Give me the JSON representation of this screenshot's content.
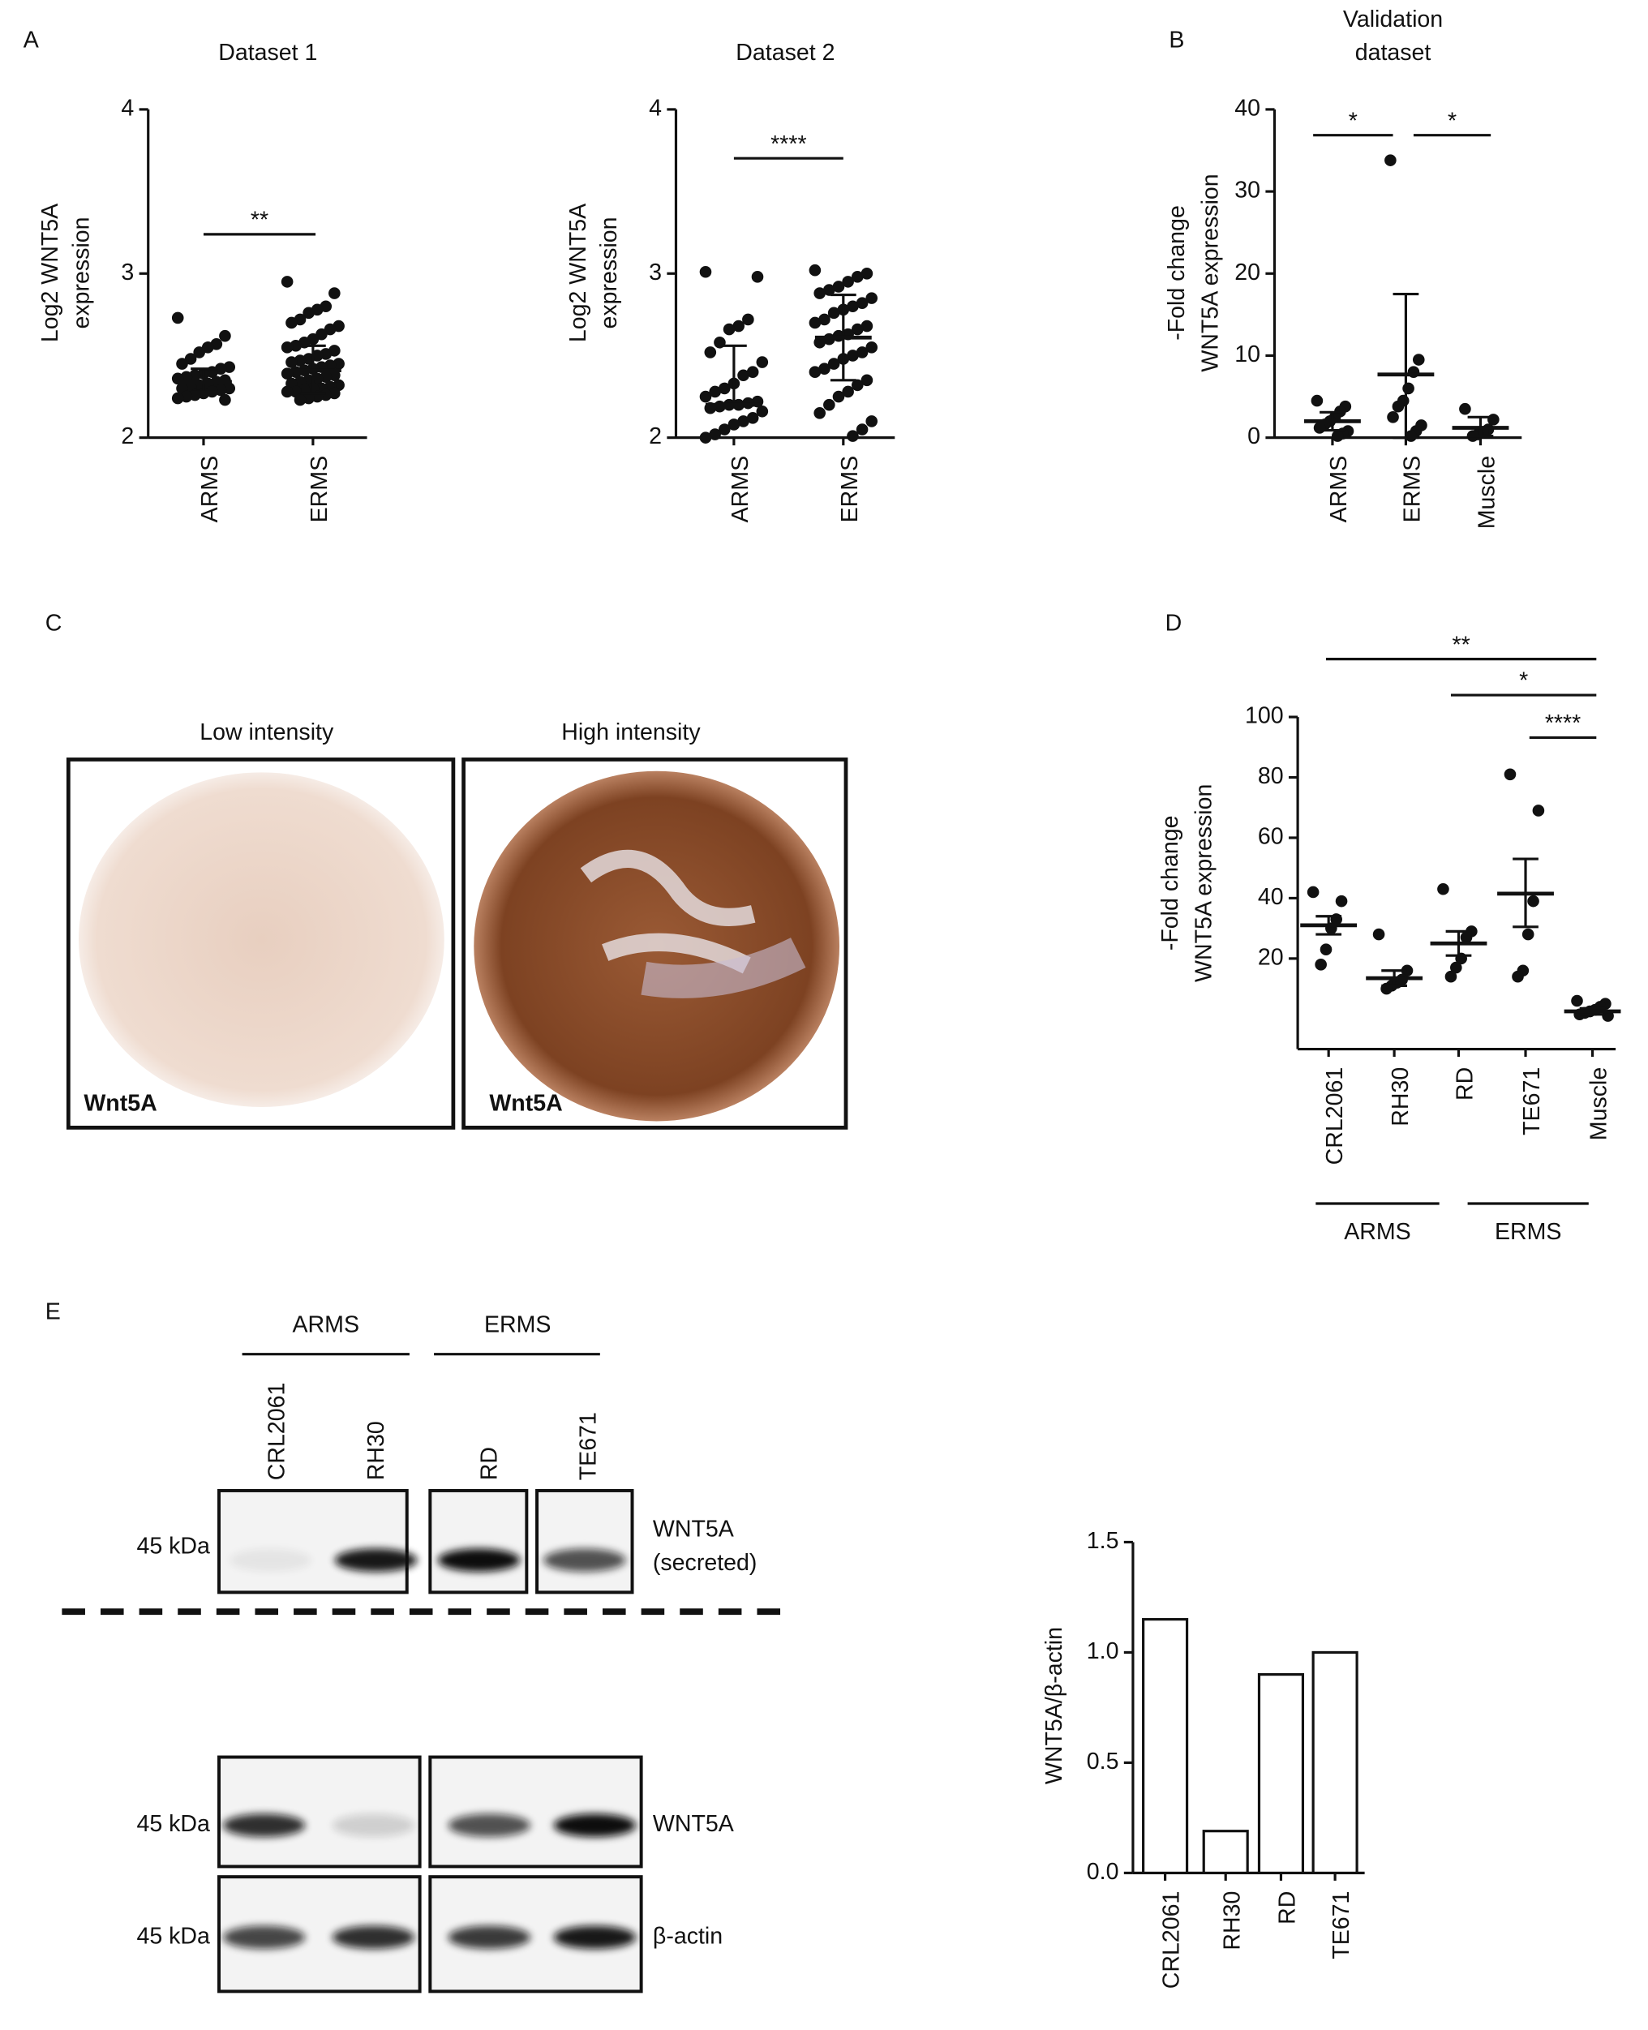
{
  "panel_labels": [
    "A",
    "B",
    "C",
    "D",
    "E"
  ],
  "chart_data": [
    {
      "type": "strip",
      "title": [
        "Dataset 1"
      ],
      "ylabel": [
        "Log2 WNT5A",
        "expression"
      ],
      "categories": [
        "ARMS",
        "ERMS"
      ],
      "ylim": [
        2,
        4
      ],
      "yticks": [
        2,
        3,
        4
      ],
      "values": [
        [
          2.73,
          2.62,
          2.57,
          2.55,
          2.52,
          2.48,
          2.45,
          2.43,
          2.42,
          2.4,
          2.39,
          2.38,
          2.37,
          2.36,
          2.35,
          2.34,
          2.33,
          2.32,
          2.31,
          2.3,
          2.3,
          2.29,
          2.28,
          2.27,
          2.26,
          2.25,
          2.24,
          2.23
        ],
        [
          2.95,
          2.88,
          2.8,
          2.78,
          2.76,
          2.72,
          2.7,
          2.68,
          2.66,
          2.63,
          2.6,
          2.58,
          2.56,
          2.55,
          2.53,
          2.51,
          2.5,
          2.48,
          2.47,
          2.46,
          2.45,
          2.44,
          2.43,
          2.42,
          2.41,
          2.4,
          2.39,
          2.38,
          2.37,
          2.36,
          2.35,
          2.34,
          2.33,
          2.32,
          2.31,
          2.3,
          2.3,
          2.29,
          2.28,
          2.28,
          2.27,
          2.26,
          2.25,
          2.24,
          2.23
        ]
      ],
      "center": [
        2.34,
        2.41
      ],
      "lower": [
        2.28,
        2.27
      ],
      "upper": [
        2.42,
        2.56
      ],
      "annotations": [
        "**"
      ]
    },
    {
      "type": "strip",
      "title": [
        "Dataset 2"
      ],
      "ylabel": [
        "Log2 WNT5A",
        "expression"
      ],
      "categories": [
        "ARMS",
        "ERMS"
      ],
      "ylim": [
        2,
        4
      ],
      "yticks": [
        2,
        3,
        4
      ],
      "values": [
        [
          3.01,
          2.98,
          2.72,
          2.68,
          2.66,
          2.58,
          2.52,
          2.46,
          2.4,
          2.38,
          2.33,
          2.3,
          2.28,
          2.25,
          2.22,
          2.21,
          2.2,
          2.2,
          2.19,
          2.18,
          2.16,
          2.12,
          2.1,
          2.08,
          2.05,
          2.02,
          2.0
        ],
        [
          3.02,
          3.0,
          2.98,
          2.95,
          2.92,
          2.9,
          2.88,
          2.85,
          2.82,
          2.8,
          2.78,
          2.76,
          2.72,
          2.7,
          2.68,
          2.66,
          2.63,
          2.62,
          2.6,
          2.58,
          2.55,
          2.52,
          2.5,
          2.48,
          2.45,
          2.42,
          2.4,
          2.35,
          2.32,
          2.28,
          2.25,
          2.2,
          2.15,
          2.1,
          2.05,
          2.01
        ]
      ],
      "center": [
        2.2,
        2.61
      ],
      "lower": [
        2.2,
        2.35
      ],
      "upper": [
        2.56,
        2.87
      ],
      "annotations": [
        "****"
      ]
    },
    {
      "type": "strip",
      "title": [
        "Validation",
        "dataset"
      ],
      "ylabel": [
        "-Fold change",
        "WNT5A expression"
      ],
      "categories": [
        "ARMS",
        "ERMS",
        "Muscle"
      ],
      "ylim": [
        0,
        40
      ],
      "yticks": [
        0,
        10,
        20,
        30,
        40
      ],
      "values": [
        [
          4.5,
          3.8,
          3.2,
          2.5,
          2.0,
          1.6,
          1.2,
          0.8,
          0.5,
          0.2
        ],
        [
          33.8,
          9.5,
          8.0,
          6.0,
          4.5,
          3.8,
          2.5,
          1.5,
          0.8,
          0.2
        ],
        [
          3.5,
          2.2,
          1.0,
          0.6,
          0.4,
          0.2
        ]
      ],
      "center": [
        2,
        7.7,
        1.2
      ],
      "lower": [
        0.9,
        0,
        0.2
      ],
      "upper": [
        3.1,
        17.5,
        2.5
      ],
      "annotations": [
        "*",
        "*"
      ]
    },
    {
      "type": "strip",
      "ylabel": [
        "-Fold change",
        "WNT5A expression"
      ],
      "categories": [
        "CRL2061",
        "RH30",
        "RD",
        "TE671",
        "Muscle"
      ],
      "groups": [
        "ARMS",
        "ERMS"
      ],
      "ylim": [
        -10,
        100
      ],
      "yticks": [
        20,
        40,
        60,
        80,
        100
      ],
      "values": [
        [
          42,
          39,
          33,
          30,
          23,
          18
        ],
        [
          28,
          16,
          13,
          12,
          11,
          10
        ],
        [
          43,
          29,
          27,
          20,
          17,
          14
        ],
        [
          81,
          69,
          39,
          28,
          16,
          14
        ],
        [
          6,
          5,
          4,
          3,
          2.5,
          2,
          1.5,
          1
        ]
      ],
      "center": [
        31,
        13.5,
        25,
        41.5,
        2.5
      ],
      "lower": [
        28,
        11,
        21,
        30.5,
        1.5
      ],
      "upper": [
        34,
        16,
        29,
        53,
        3.5
      ],
      "annotations": [
        "**",
        "*",
        "****"
      ]
    },
    {
      "type": "bar",
      "ylabel": [
        "WNT5A/β-actin"
      ],
      "categories": [
        "CRL2061",
        "RH30",
        "RD",
        "TE671"
      ],
      "values": [
        1.15,
        0.19,
        0.9,
        1.0
      ],
      "color": "#ffffff",
      "ylim": [
        0,
        1.5
      ],
      "yticks": [
        {
          "value": 0,
          "label": "0.0"
        },
        {
          "value": 0.5,
          "label": "0.5"
        },
        {
          "value": 1,
          "label": "1.0"
        },
        {
          "value": 1.5,
          "label": "1.5"
        }
      ]
    }
  ],
  "ihc": {
    "panels": [
      {
        "title": "Low intensity",
        "stain": "Wnt5A"
      },
      {
        "title": "High intensity",
        "stain": "Wnt5A"
      }
    ]
  },
  "blots": {
    "groups": [
      "ARMS",
      "ERMS"
    ],
    "lanes": [
      "CRL2061",
      "RH30",
      "RD",
      "TE671"
    ],
    "rows": [
      {
        "marker": "45 kDa",
        "label": [
          "WNT5A",
          "(secreted)"
        ]
      },
      {
        "marker": "45 kDa",
        "label": [
          "WNT5A"
        ]
      },
      {
        "marker": "45 kDa",
        "label": [
          "β-actin"
        ]
      }
    ]
  }
}
